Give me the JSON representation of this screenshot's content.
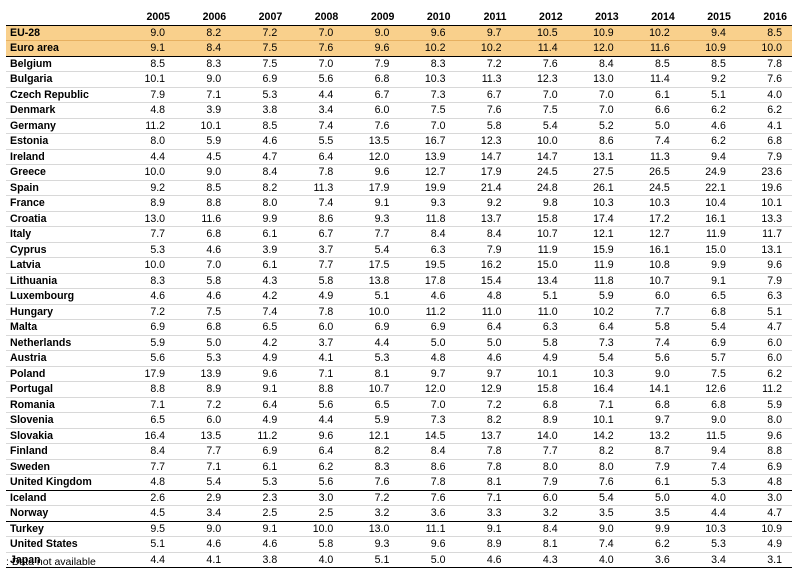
{
  "chart_data": {
    "type": "table",
    "columns": [
      "2005",
      "2006",
      "2007",
      "2008",
      "2009",
      "2010",
      "2011",
      "2012",
      "2013",
      "2014",
      "2015",
      "2016"
    ],
    "rows": [
      {
        "name": "EU-28",
        "values": [
          "9.0",
          "8.2",
          "7.2",
          "7.0",
          "9.0",
          "9.6",
          "9.7",
          "10.5",
          "10.9",
          "10.2",
          "9.4",
          "8.5"
        ],
        "aggregate": true
      },
      {
        "name": "Euro area",
        "values": [
          "9.1",
          "8.4",
          "7.5",
          "7.6",
          "9.6",
          "10.2",
          "10.2",
          "11.4",
          "12.0",
          "11.6",
          "10.9",
          "10.0"
        ],
        "aggregate": true
      },
      {
        "name": "Belgium",
        "values": [
          "8.5",
          "8.3",
          "7.5",
          "7.0",
          "7.9",
          "8.3",
          "7.2",
          "7.6",
          "8.4",
          "8.5",
          "8.5",
          "7.8"
        ]
      },
      {
        "name": "Bulgaria",
        "values": [
          "10.1",
          "9.0",
          "6.9",
          "5.6",
          "6.8",
          "10.3",
          "11.3",
          "12.3",
          "13.0",
          "11.4",
          "9.2",
          "7.6"
        ]
      },
      {
        "name": "Czech Republic",
        "values": [
          "7.9",
          "7.1",
          "5.3",
          "4.4",
          "6.7",
          "7.3",
          "6.7",
          "7.0",
          "7.0",
          "6.1",
          "5.1",
          "4.0"
        ]
      },
      {
        "name": "Denmark",
        "values": [
          "4.8",
          "3.9",
          "3.8",
          "3.4",
          "6.0",
          "7.5",
          "7.6",
          "7.5",
          "7.0",
          "6.6",
          "6.2",
          "6.2"
        ]
      },
      {
        "name": "Germany",
        "values": [
          "11.2",
          "10.1",
          "8.5",
          "7.4",
          "7.6",
          "7.0",
          "5.8",
          "5.4",
          "5.2",
          "5.0",
          "4.6",
          "4.1"
        ]
      },
      {
        "name": "Estonia",
        "values": [
          "8.0",
          "5.9",
          "4.6",
          "5.5",
          "13.5",
          "16.7",
          "12.3",
          "10.0",
          "8.6",
          "7.4",
          "6.2",
          "6.8"
        ]
      },
      {
        "name": "Ireland",
        "values": [
          "4.4",
          "4.5",
          "4.7",
          "6.4",
          "12.0",
          "13.9",
          "14.7",
          "14.7",
          "13.1",
          "11.3",
          "9.4",
          "7.9"
        ]
      },
      {
        "name": "Greece",
        "values": [
          "10.0",
          "9.0",
          "8.4",
          "7.8",
          "9.6",
          "12.7",
          "17.9",
          "24.5",
          "27.5",
          "26.5",
          "24.9",
          "23.6"
        ]
      },
      {
        "name": "Spain",
        "values": [
          "9.2",
          "8.5",
          "8.2",
          "11.3",
          "17.9",
          "19.9",
          "21.4",
          "24.8",
          "26.1",
          "24.5",
          "22.1",
          "19.6"
        ]
      },
      {
        "name": "France",
        "values": [
          "8.9",
          "8.8",
          "8.0",
          "7.4",
          "9.1",
          "9.3",
          "9.2",
          "9.8",
          "10.3",
          "10.3",
          "10.4",
          "10.1"
        ]
      },
      {
        "name": "Croatia",
        "values": [
          "13.0",
          "11.6",
          "9.9",
          "8.6",
          "9.3",
          "11.8",
          "13.7",
          "15.8",
          "17.4",
          "17.2",
          "16.1",
          "13.3"
        ]
      },
      {
        "name": "Italy",
        "values": [
          "7.7",
          "6.8",
          "6.1",
          "6.7",
          "7.7",
          "8.4",
          "8.4",
          "10.7",
          "12.1",
          "12.7",
          "11.9",
          "11.7"
        ]
      },
      {
        "name": "Cyprus",
        "values": [
          "5.3",
          "4.6",
          "3.9",
          "3.7",
          "5.4",
          "6.3",
          "7.9",
          "11.9",
          "15.9",
          "16.1",
          "15.0",
          "13.1"
        ]
      },
      {
        "name": "Latvia",
        "values": [
          "10.0",
          "7.0",
          "6.1",
          "7.7",
          "17.5",
          "19.5",
          "16.2",
          "15.0",
          "11.9",
          "10.8",
          "9.9",
          "9.6"
        ]
      },
      {
        "name": "Lithuania",
        "values": [
          "8.3",
          "5.8",
          "4.3",
          "5.8",
          "13.8",
          "17.8",
          "15.4",
          "13.4",
          "11.8",
          "10.7",
          "9.1",
          "7.9"
        ]
      },
      {
        "name": "Luxembourg",
        "values": [
          "4.6",
          "4.6",
          "4.2",
          "4.9",
          "5.1",
          "4.6",
          "4.8",
          "5.1",
          "5.9",
          "6.0",
          "6.5",
          "6.3"
        ]
      },
      {
        "name": "Hungary",
        "values": [
          "7.2",
          "7.5",
          "7.4",
          "7.8",
          "10.0",
          "11.2",
          "11.0",
          "11.0",
          "10.2",
          "7.7",
          "6.8",
          "5.1"
        ]
      },
      {
        "name": "Malta",
        "values": [
          "6.9",
          "6.8",
          "6.5",
          "6.0",
          "6.9",
          "6.9",
          "6.4",
          "6.3",
          "6.4",
          "5.8",
          "5.4",
          "4.7"
        ]
      },
      {
        "name": "Netherlands",
        "values": [
          "5.9",
          "5.0",
          "4.2",
          "3.7",
          "4.4",
          "5.0",
          "5.0",
          "5.8",
          "7.3",
          "7.4",
          "6.9",
          "6.0"
        ]
      },
      {
        "name": "Austria",
        "values": [
          "5.6",
          "5.3",
          "4.9",
          "4.1",
          "5.3",
          "4.8",
          "4.6",
          "4.9",
          "5.4",
          "5.6",
          "5.7",
          "6.0"
        ]
      },
      {
        "name": "Poland",
        "values": [
          "17.9",
          "13.9",
          "9.6",
          "7.1",
          "8.1",
          "9.7",
          "9.7",
          "10.1",
          "10.3",
          "9.0",
          "7.5",
          "6.2"
        ]
      },
      {
        "name": "Portugal",
        "values": [
          "8.8",
          "8.9",
          "9.1",
          "8.8",
          "10.7",
          "12.0",
          "12.9",
          "15.8",
          "16.4",
          "14.1",
          "12.6",
          "11.2"
        ]
      },
      {
        "name": "Romania",
        "values": [
          "7.1",
          "7.2",
          "6.4",
          "5.6",
          "6.5",
          "7.0",
          "7.2",
          "6.8",
          "7.1",
          "6.8",
          "6.8",
          "5.9"
        ]
      },
      {
        "name": "Slovenia",
        "values": [
          "6.5",
          "6.0",
          "4.9",
          "4.4",
          "5.9",
          "7.3",
          "8.2",
          "8.9",
          "10.1",
          "9.7",
          "9.0",
          "8.0"
        ]
      },
      {
        "name": "Slovakia",
        "values": [
          "16.4",
          "13.5",
          "11.2",
          "9.6",
          "12.1",
          "14.5",
          "13.7",
          "14.0",
          "14.2",
          "13.2",
          "11.5",
          "9.6"
        ]
      },
      {
        "name": "Finland",
        "values": [
          "8.4",
          "7.7",
          "6.9",
          "6.4",
          "8.2",
          "8.4",
          "7.8",
          "7.7",
          "8.2",
          "8.7",
          "9.4",
          "8.8"
        ]
      },
      {
        "name": "Sweden",
        "values": [
          "7.7",
          "7.1",
          "6.1",
          "6.2",
          "8.3",
          "8.6",
          "7.8",
          "8.0",
          "8.0",
          "7.9",
          "7.4",
          "6.9"
        ]
      },
      {
        "name": "United Kingdom",
        "values": [
          "4.8",
          "5.4",
          "5.3",
          "5.6",
          "7.6",
          "7.8",
          "8.1",
          "7.9",
          "7.6",
          "6.1",
          "5.3",
          "4.8"
        ]
      },
      {
        "name": "Iceland",
        "values": [
          "2.6",
          "2.9",
          "2.3",
          "3.0",
          "7.2",
          "7.6",
          "7.1",
          "6.0",
          "5.4",
          "5.0",
          "4.0",
          "3.0"
        ]
      },
      {
        "name": "Norway",
        "values": [
          "4.5",
          "3.4",
          "2.5",
          "2.5",
          "3.2",
          "3.6",
          "3.3",
          "3.2",
          "3.5",
          "3.5",
          "4.4",
          "4.7"
        ]
      },
      {
        "name": "Turkey",
        "values": [
          "9.5",
          "9.0",
          "9.1",
          "10.0",
          "13.0",
          "11.1",
          "9.1",
          "8.4",
          "9.0",
          "9.9",
          "10.3",
          "10.9"
        ]
      },
      {
        "name": "United States",
        "values": [
          "5.1",
          "4.6",
          "4.6",
          "5.8",
          "9.3",
          "9.6",
          "8.9",
          "8.1",
          "7.4",
          "6.2",
          "5.3",
          "4.9"
        ]
      },
      {
        "name": "Japan",
        "values": [
          "4.4",
          "4.1",
          "3.8",
          "4.0",
          "5.1",
          "5.0",
          "4.6",
          "4.3",
          "4.0",
          "3.6",
          "3.4",
          "3.1"
        ]
      }
    ],
    "footnote": ": Data not available"
  },
  "colors": {
    "aggregate_row_bg": "#f9d08c",
    "row_rule": "#d8d8d8",
    "strong_rule": "#000000"
  }
}
